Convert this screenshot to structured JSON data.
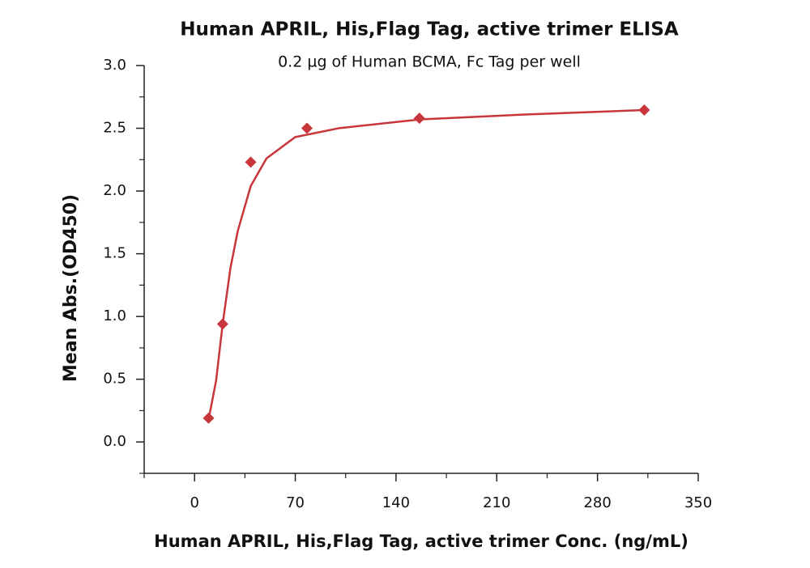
{
  "chart_data": {
    "type": "scatter",
    "title": "Human APRIL, His,Flag Tag, active trimer ELISA",
    "subtitle": "0.2 µg of Human BCMA, Fc Tag per well",
    "x_label": "Human APRIL, His,Flag Tag, active trimer Conc. (ng/mL)",
    "y_label": "Mean Abs.(OD450)",
    "x": [
      9.77,
      19.53,
      39.06,
      78.13,
      156.25,
      312.5
    ],
    "values": [
      0.19,
      0.94,
      2.23,
      2.5,
      2.58,
      2.645
    ],
    "color": "#c8353a",
    "curve": {
      "x": [
        9.77,
        15,
        19.53,
        25,
        30,
        39.06,
        50,
        70,
        100,
        156.25,
        230,
        312.5
      ],
      "values": [
        0.18,
        0.49,
        0.94,
        1.39,
        1.68,
        2.04,
        2.26,
        2.43,
        2.5,
        2.57,
        2.61,
        2.645
      ]
    },
    "xlim": [
      -35,
      350
    ],
    "ylim": [
      -0.25,
      3.0
    ],
    "xticks": [
      0,
      70,
      140,
      210,
      280,
      350
    ],
    "xminorticks": [
      -35,
      35,
      105,
      175,
      245,
      315
    ],
    "yticks": [
      {
        "value": 0,
        "label": "0.0"
      },
      {
        "value": 0.5,
        "label": "0.5"
      },
      {
        "value": 1,
        "label": "1.0"
      },
      {
        "value": 1.5,
        "label": "1.5"
      },
      {
        "value": 2,
        "label": "2.0"
      },
      {
        "value": 2.5,
        "label": "2.5"
      },
      {
        "value": 3,
        "label": "3.0"
      }
    ],
    "yminorticks": [
      -0.25,
      0.25,
      0.75,
      1.25,
      1.75,
      2.25,
      2.75
    ]
  }
}
